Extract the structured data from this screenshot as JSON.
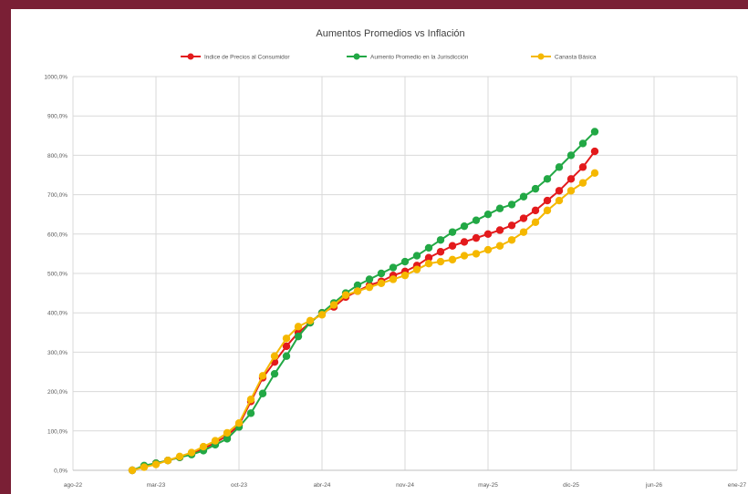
{
  "chart_data": {
    "type": "line",
    "title": "Aumentos Promedios vs Inflación",
    "xlabel": "",
    "ylabel": "",
    "x_ticks": [
      "ago-22",
      "mar-23",
      "oct-23",
      "abr-24",
      "nov-24",
      "may-25",
      "dic-25",
      "jun-26",
      "ene-27"
    ],
    "y_ticks": [
      "0,0%",
      "100,0%",
      "200,0%",
      "300,0%",
      "400,0%",
      "500,0%",
      "600,0%",
      "700,0%",
      "800,0%",
      "900,0%",
      "1000,0%"
    ],
    "ylim": [
      0,
      1000
    ],
    "grid": true,
    "legend_position": "top",
    "x": [
      "2023-01",
      "2023-02",
      "2023-03",
      "2023-04",
      "2023-05",
      "2023-06",
      "2023-07",
      "2023-08",
      "2023-09",
      "2023-10",
      "2023-11",
      "2023-12",
      "2024-01",
      "2024-02",
      "2024-03",
      "2024-04",
      "2024-05",
      "2024-06",
      "2024-07",
      "2024-08",
      "2024-09",
      "2024-10",
      "2024-11",
      "2024-12",
      "2025-01",
      "2025-02",
      "2025-03",
      "2025-04",
      "2025-05",
      "2025-06",
      "2025-07",
      "2025-08",
      "2025-09",
      "2025-10",
      "2025-11",
      "2025-12",
      "2026-01",
      "2026-02",
      "2026-03",
      "2026-04"
    ],
    "series": [
      {
        "name": "Indice de Precios al Consumidor",
        "color": "#e31a1c",
        "values": [
          0,
          10,
          18,
          25,
          33,
          42,
          55,
          70,
          88,
          115,
          175,
          235,
          275,
          315,
          350,
          375,
          400,
          415,
          440,
          455,
          470,
          480,
          495,
          505,
          520,
          540,
          555,
          570,
          580,
          590,
          600,
          610,
          622,
          640,
          660,
          685,
          710,
          740,
          770,
          810
        ]
      },
      {
        "name": "Aumento Promedio en la Jurisdicción",
        "color": "#22a845",
        "values": [
          0,
          12,
          18,
          25,
          33,
          40,
          50,
          65,
          80,
          110,
          145,
          195,
          245,
          290,
          340,
          375,
          400,
          425,
          450,
          470,
          485,
          500,
          515,
          530,
          545,
          565,
          585,
          605,
          620,
          635,
          650,
          665,
          675,
          695,
          715,
          740,
          770,
          800,
          830,
          860
        ]
      },
      {
        "name": "Canasta Básica",
        "color": "#f5b800",
        "values": [
          0,
          8,
          15,
          25,
          35,
          45,
          60,
          75,
          95,
          120,
          180,
          240,
          290,
          335,
          365,
          380,
          395,
          420,
          445,
          455,
          465,
          475,
          485,
          495,
          510,
          525,
          530,
          535,
          545,
          550,
          560,
          570,
          585,
          605,
          630,
          660,
          685,
          710,
          730,
          755
        ]
      }
    ]
  }
}
